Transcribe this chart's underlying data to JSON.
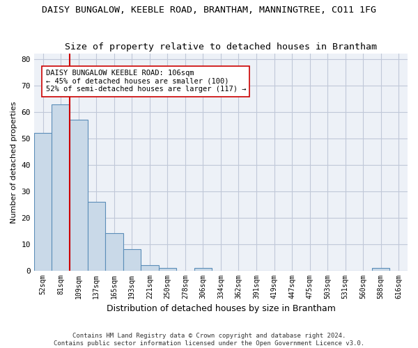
{
  "title": "DAISY BUNGALOW, KEEBLE ROAD, BRANTHAM, MANNINGTREE, CO11 1FG",
  "subtitle": "Size of property relative to detached houses in Brantham",
  "xlabel": "Distribution of detached houses by size in Brantham",
  "ylabel": "Number of detached properties",
  "bin_labels": [
    "52sqm",
    "81sqm",
    "109sqm",
    "137sqm",
    "165sqm",
    "193sqm",
    "221sqm",
    "250sqm",
    "278sqm",
    "306sqm",
    "334sqm",
    "362sqm",
    "391sqm",
    "419sqm",
    "447sqm",
    "475sqm",
    "503sqm",
    "531sqm",
    "560sqm",
    "588sqm",
    "616sqm"
  ],
  "bar_heights": [
    52,
    63,
    57,
    26,
    14,
    8,
    2,
    1,
    0,
    1,
    0,
    0,
    0,
    0,
    0,
    0,
    0,
    0,
    0,
    1,
    0
  ],
  "bar_color": "#c9d9e8",
  "bar_edge_color": "#5b8db8",
  "grid_color": "#c0c8d8",
  "property_line_x": 1.5,
  "property_line_color": "#cc0000",
  "annotation_text": "DAISY BUNGALOW KEEBLE ROAD: 106sqm\n← 45% of detached houses are smaller (100)\n52% of semi-detached houses are larger (117) →",
  "annotation_box_color": "#ffffff",
  "annotation_box_edge": "#cc0000",
  "ylim": [
    0,
    82
  ],
  "yticks": [
    0,
    10,
    20,
    30,
    40,
    50,
    60,
    70,
    80
  ],
  "footer_text": "Contains HM Land Registry data © Crown copyright and database right 2024.\nContains public sector information licensed under the Open Government Licence v3.0.",
  "bg_color": "#edf1f7",
  "title_fontsize": 9.5,
  "subtitle_fontsize": 9.5
}
